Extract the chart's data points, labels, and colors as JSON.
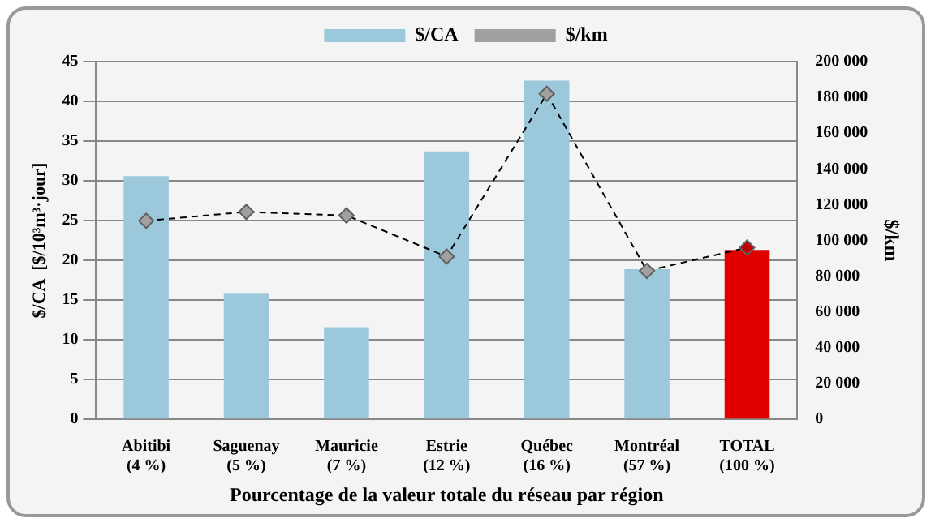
{
  "chart_data": {
    "type": "bar",
    "xlabel": "Pourcentage de la valeur totale du réseau par région",
    "ylabel": "$/CA  [$/10³m³·jour]",
    "y2label": "$/km",
    "categories": [
      "Abitibi\n(4 %)",
      "Saguenay\n(5 %)",
      "Mauricie\n(7 %)",
      "Estrie\n(12 %)",
      "Québec\n(16 %)",
      "Montréal\n(57 %)",
      "TOTAL\n(100 %)"
    ],
    "series": [
      {
        "name": "$/CA",
        "color": "#9cc8dc",
        "colors": [
          "#9cc8dc",
          "#9cc8dc",
          "#9cc8dc",
          "#9cc8dc",
          "#9cc8dc",
          "#9cc8dc",
          "#e00000"
        ],
        "values": [
          30.6,
          15.8,
          11.6,
          33.7,
          42.6,
          18.9,
          21.3
        ]
      },
      {
        "name": "$/km",
        "type": "line",
        "axis": "y2",
        "color": "#a0a0a0",
        "colors": [
          "#a0a0a0",
          "#a0a0a0",
          "#a0a0a0",
          "#a0a0a0",
          "#a0a0a0",
          "#a0a0a0",
          "#c00000"
        ],
        "line_style": "dashed",
        "marker": "diamond",
        "values": [
          111000,
          116000,
          114000,
          91000,
          182000,
          83000,
          96000
        ]
      }
    ],
    "ylim": [
      0,
      45
    ],
    "yticks": [
      0,
      5,
      10,
      15,
      20,
      25,
      30,
      35,
      40,
      45
    ],
    "y2lim": [
      0,
      200000
    ],
    "y2ticks": [
      {
        "value": 0,
        "label": "0"
      },
      {
        "value": 20000,
        "label": "20 000"
      },
      {
        "value": 40000,
        "label": "40 000"
      },
      {
        "value": 60000,
        "label": "60 000"
      },
      {
        "value": 80000,
        "label": "80 000"
      },
      {
        "value": 100000,
        "label": "100 000"
      },
      {
        "value": 120000,
        "label": "120 000"
      },
      {
        "value": 140000,
        "label": "140 000"
      },
      {
        "value": 160000,
        "label": "160 000"
      },
      {
        "value": 180000,
        "label": "180 000"
      },
      {
        "value": 200000,
        "label": "200 000"
      }
    ],
    "grid": "y",
    "legend": "top"
  }
}
